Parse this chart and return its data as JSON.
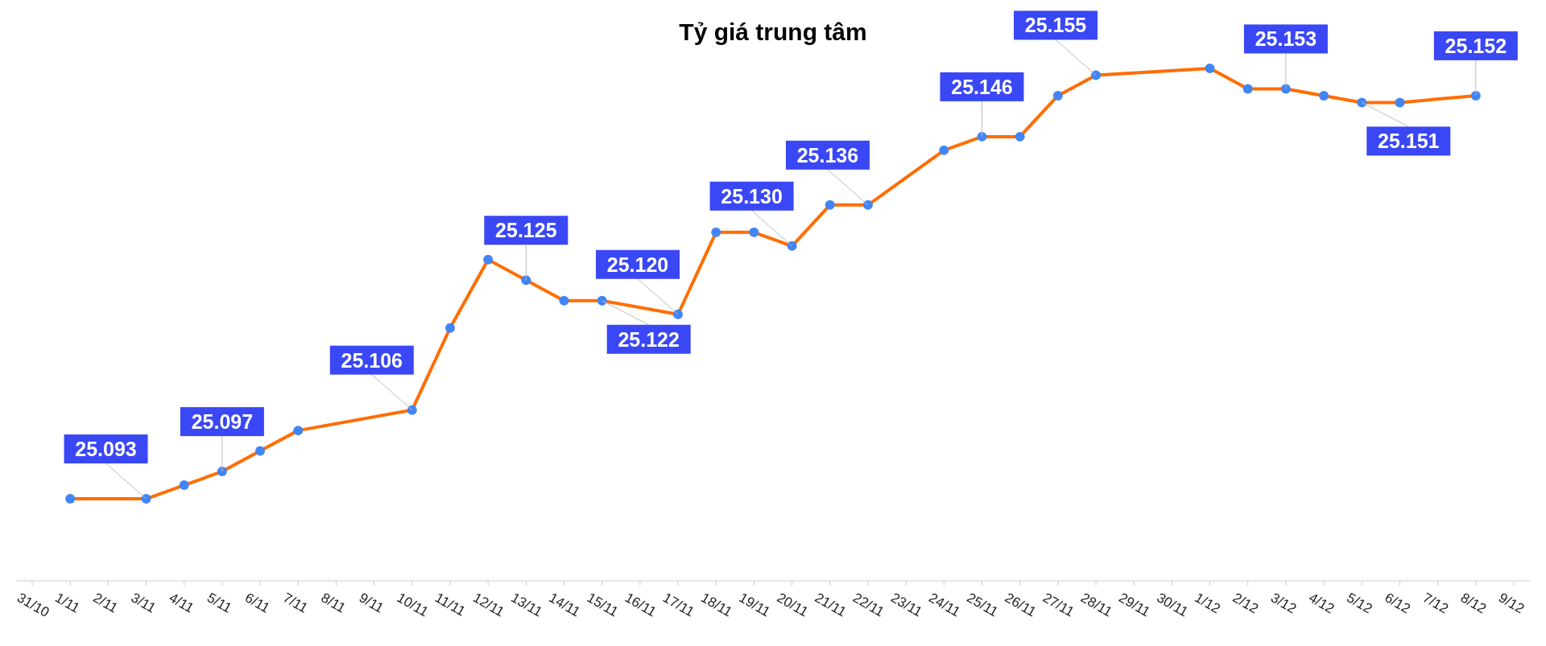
{
  "chart_data": {
    "type": "line",
    "title": "Tỷ giá trung tâm",
    "categories": [
      "31/10",
      "1/11",
      "2/11",
      "3/11",
      "4/11",
      "5/11",
      "6/11",
      "7/11",
      "8/11",
      "9/11",
      "10/11",
      "11/11",
      "12/11",
      "13/11",
      "14/11",
      "15/11",
      "16/11",
      "17/11",
      "18/11",
      "19/11",
      "20/11",
      "21/11",
      "22/11",
      "23/11",
      "24/11",
      "25/11",
      "26/11",
      "27/11",
      "28/11",
      "29/11",
      "30/11",
      "1/12",
      "2/12",
      "3/12",
      "4/12",
      "5/12",
      "6/12",
      "7/12",
      "8/12",
      "9/12"
    ],
    "series": [
      {
        "color": "#ff6d00",
        "values": [
          null,
          25093,
          null,
          25093,
          25095,
          25097,
          25100,
          25103,
          null,
          null,
          25106,
          25118,
          25128,
          25125,
          25122,
          25122,
          null,
          25120,
          25132,
          25132,
          25130,
          25136,
          25136,
          null,
          25144,
          25146,
          25146,
          25152,
          25155,
          null,
          null,
          25156,
          25153,
          25153,
          25152,
          25151,
          25151,
          null,
          25152,
          null
        ],
        "value_labels": [
          null,
          null,
          null,
          "25.093",
          null,
          "25.097",
          null,
          null,
          null,
          null,
          "25.106",
          null,
          null,
          "25.125",
          null,
          "25.122",
          null,
          "25.120",
          null,
          null,
          "25.130",
          null,
          "25.136",
          null,
          null,
          "25.146",
          null,
          null,
          "25.155",
          null,
          null,
          null,
          null,
          "25.153",
          null,
          "25.151",
          null,
          null,
          "25.152",
          null
        ]
      }
    ],
    "ylim": [
      25081,
      25166
    ],
    "marker": "circle",
    "line_style": "solid"
  }
}
